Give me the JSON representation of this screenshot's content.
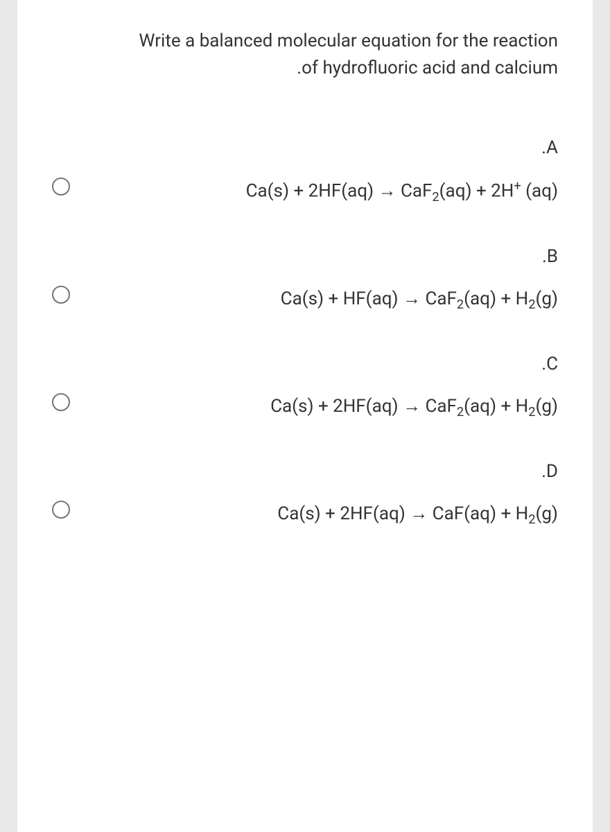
{
  "question": {
    "line1": "Write a balanced molecular equation for the reaction",
    "line2": ".of hydrofluoric acid and calcium"
  },
  "options": [
    {
      "label": ".A",
      "equation": "Ca(s) + 2HF(aq) → CaF<sub>2</sub>(aq) + 2H<sup>+</sup> (aq)"
    },
    {
      "label": ".B",
      "equation": "Ca(s) + HF(aq) → CaF<sub>2</sub>(aq) + H<sub>2</sub>(g)"
    },
    {
      "label": ".C",
      "equation": "Ca(s) + 2HF(aq) → CaF<sub>2</sub>(aq) + H<sub>2</sub>(g)"
    },
    {
      "label": ".D",
      "equation": "Ca(s) + 2HF(aq) → CaF(aq) + H<sub>2</sub>(g)"
    }
  ]
}
